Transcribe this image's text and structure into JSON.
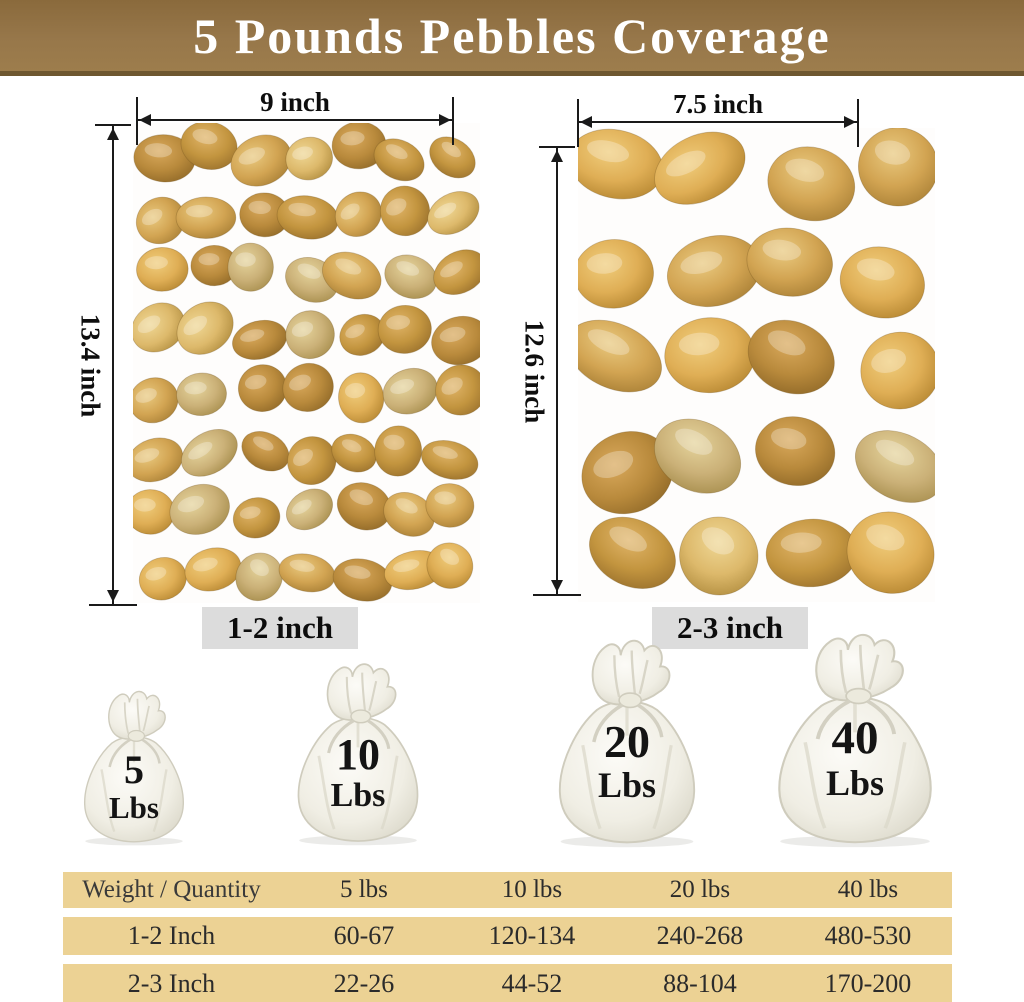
{
  "title": "5 Pounds Pebbles Coverage",
  "left_photo": {
    "width_label": "9 inch",
    "height_label": "13.4 inch",
    "size_label": "1-2 inch"
  },
  "right_photo": {
    "width_label": "7.5 inch",
    "height_label": "12.6 inch",
    "size_label": "2-3 inch"
  },
  "bags": [
    {
      "weight": "5",
      "unit": "Lbs"
    },
    {
      "weight": "10",
      "unit": "Lbs"
    },
    {
      "weight": "20",
      "unit": "Lbs"
    },
    {
      "weight": "40",
      "unit": "Lbs"
    }
  ],
  "table": {
    "header": [
      "Weight / Quantity",
      "5 lbs",
      "10 lbs",
      "20 lbs",
      "40 lbs"
    ],
    "rows": [
      [
        "1-2 Inch",
        "60-67",
        "120-134",
        "240-268",
        "480-530"
      ],
      [
        "2-3 Inch",
        "22-26",
        "44-52",
        "88-104",
        "170-200"
      ]
    ]
  },
  "colors": {
    "banner": "#97774a",
    "banner_border": "#6e5730",
    "table_band": "#ecd294",
    "size_label_box": "#dcdcdc",
    "pebble_base": "#cfa355",
    "bag_fill": "#f0eee4"
  }
}
